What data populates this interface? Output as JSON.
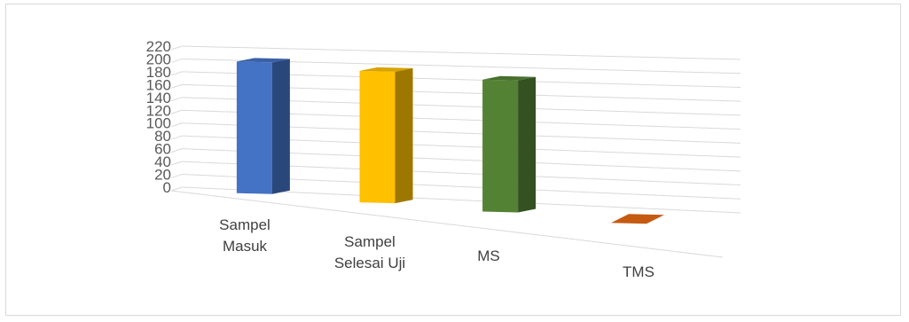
{
  "chart_data": {
    "type": "bar",
    "style": "3d-column",
    "categories": [
      "Sampel Masuk",
      "Sampel Selesai Uji",
      "MS",
      "TMS"
    ],
    "values": [
      203,
      199,
      196,
      0
    ],
    "ylim": [
      0,
      220
    ],
    "yticks": [
      "0",
      "20",
      "40",
      "60",
      "80",
      "100",
      "120",
      "140",
      "160",
      "180",
      "200",
      "220"
    ],
    "grid": true,
    "colors": [
      "#4472c4",
      "#ffc000",
      "#548235",
      "#c55a11"
    ]
  }
}
